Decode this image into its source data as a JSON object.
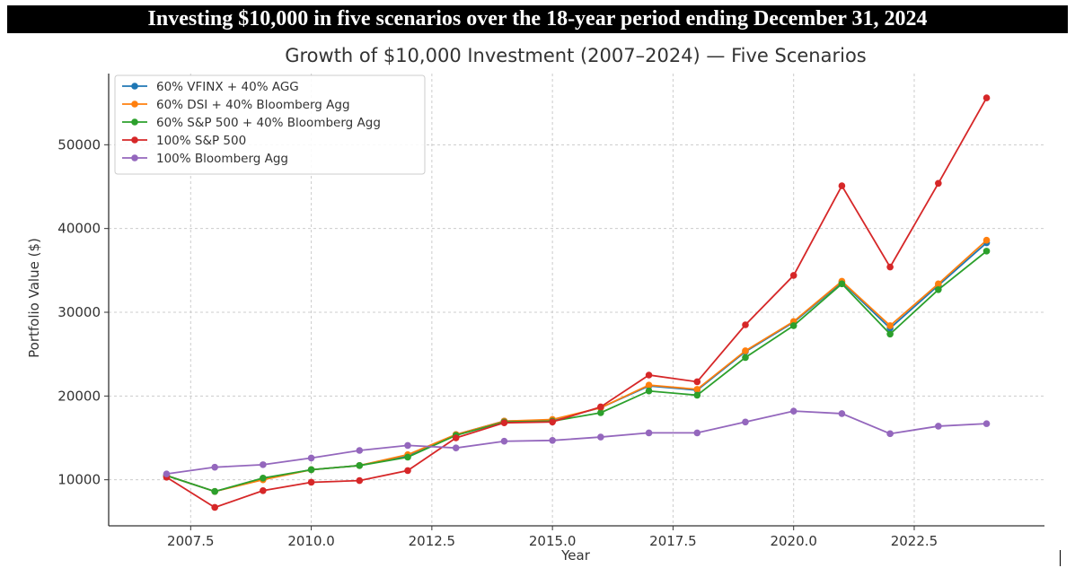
{
  "banner": {
    "title": "Investing $10,000 in five scenarios over the 18-year period ending December 31, 2024"
  },
  "chart_data": {
    "type": "line",
    "title": "Growth of $10,000 Investment (2007–2024) — Five Scenarios",
    "xlabel": "Year",
    "ylabel": "Portfolio Value ($)",
    "x": [
      2007,
      2008,
      2009,
      2010,
      2011,
      2012,
      2013,
      2014,
      2015,
      2016,
      2017,
      2018,
      2019,
      2020,
      2021,
      2022,
      2023,
      2024
    ],
    "xlim": [
      2005.8,
      2025.2
    ],
    "ylim": [
      4500,
      58500
    ],
    "xticks": [
      2007.5,
      2010.0,
      2012.5,
      2015.0,
      2017.5,
      2020.0,
      2022.5
    ],
    "xtick_labels": [
      "2007.5",
      "2010.0",
      "2012.5",
      "2015.0",
      "2017.5",
      "2020.0",
      "2022.5"
    ],
    "yticks": [
      10000,
      20000,
      30000,
      40000,
      50000
    ],
    "ytick_labels": [
      "10000",
      "20000",
      "30000",
      "40000",
      "50000"
    ],
    "grid": true,
    "legend_position": "top-left",
    "series": [
      {
        "name": "60% VFINX + 40% AGG",
        "color": "#1f77b4",
        "values": [
          10500,
          8600,
          10100,
          11200,
          11700,
          12900,
          15400,
          17000,
          17100,
          18600,
          21200,
          20700,
          25300,
          28800,
          33600,
          28100,
          33200,
          38300
        ]
      },
      {
        "name": "60% DSI + 40% Bloomberg Agg",
        "color": "#ff7f0e",
        "values": [
          10500,
          8600,
          10000,
          11200,
          11700,
          13000,
          15400,
          17000,
          17200,
          18600,
          21300,
          20800,
          25400,
          28900,
          33700,
          28400,
          33400,
          38600
        ]
      },
      {
        "name": "60% S&P 500 + 40% Bloomberg Agg",
        "color": "#2ca02c",
        "values": [
          10500,
          8600,
          10200,
          11200,
          11700,
          12700,
          15300,
          16900,
          17000,
          18000,
          20600,
          20100,
          24600,
          28400,
          33400,
          27400,
          32700,
          37300
        ]
      },
      {
        "name": "100% S&P 500",
        "color": "#d62728",
        "values": [
          10300,
          6700,
          8700,
          9700,
          9900,
          11100,
          15000,
          16800,
          16900,
          18700,
          22500,
          21700,
          28500,
          34400,
          45100,
          35400,
          45400,
          55600
        ]
      },
      {
        "name": "100% Bloomberg Agg",
        "color": "#9467bd",
        "values": [
          10700,
          11500,
          11800,
          12600,
          13500,
          14100,
          13800,
          14600,
          14700,
          15100,
          15600,
          15600,
          16900,
          18200,
          17900,
          15500,
          16400,
          16700
        ]
      }
    ]
  }
}
